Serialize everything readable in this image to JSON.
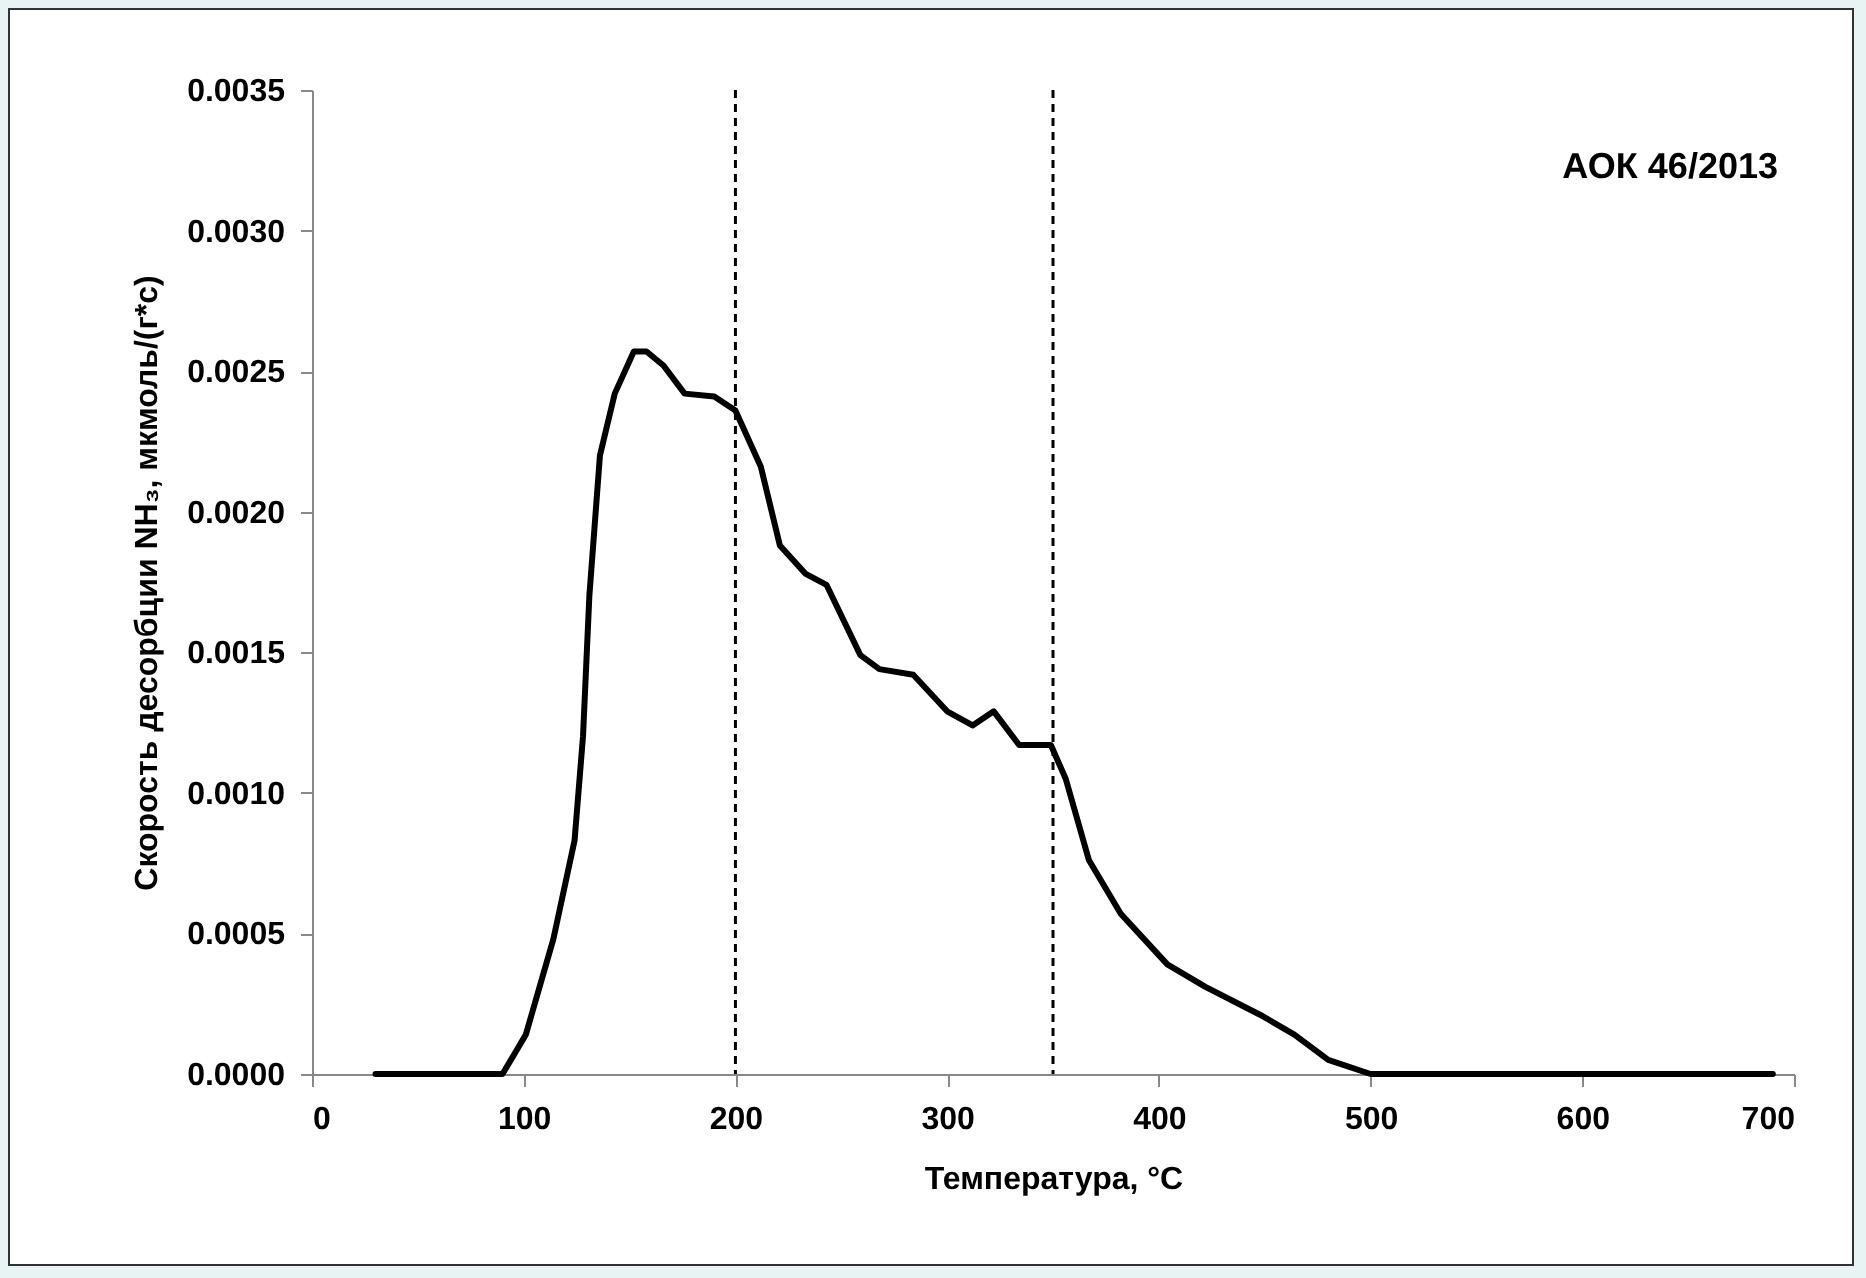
{
  "chart_data": {
    "type": "line",
    "xlabel": "Температура, °C",
    "ylabel": "Скорость десорбции NH₃, мкмоль/(г*с)",
    "annotations": [
      "АОК 46/2013"
    ],
    "x": [
      30,
      88,
      90,
      101,
      114,
      124,
      128,
      131,
      136,
      143,
      152,
      158,
      166,
      176,
      190,
      200,
      212,
      221,
      233,
      243,
      259,
      268,
      284,
      300,
      312,
      322,
      334,
      349,
      356,
      367,
      382,
      404,
      422,
      448,
      464,
      480,
      500,
      507,
      600,
      690
    ],
    "series": [
      {
        "color": "#000000",
        "values": [
          0,
          0,
          0,
          0.00014,
          0.00048,
          0.00083,
          0.0012,
          0.0017,
          0.0022,
          0.00242,
          0.00257,
          0.00257,
          0.00252,
          0.00242,
          0.00241,
          0.00236,
          0.00216,
          0.00188,
          0.00178,
          0.00174,
          0.00149,
          0.00144,
          0.00142,
          0.00129,
          0.00124,
          0.00129,
          0.00117,
          0.00117,
          0.00105,
          0.00076,
          0.00057,
          0.00039,
          0.00031,
          0.00021,
          0.00014,
          5e-05,
          0,
          0,
          0,
          0
        ]
      }
    ],
    "xlim": [
      0,
      700
    ],
    "xticks": [
      0,
      100,
      200,
      300,
      400,
      500,
      600,
      700
    ],
    "ylim": [
      0,
      0.0035
    ],
    "yticks": [
      {
        "value": 0,
        "label": "0.0000"
      },
      {
        "value": 0.0005,
        "label": "0.0005"
      },
      {
        "value": 0.001,
        "label": "0.0010"
      },
      {
        "value": 0.0015,
        "label": "0.0015"
      },
      {
        "value": 0.002,
        "label": "0.0020"
      },
      {
        "value": 0.0025,
        "label": "0.0025"
      },
      {
        "value": 0.003,
        "label": "0.0030"
      },
      {
        "value": 0.0035,
        "label": "0.0035"
      }
    ],
    "ref_lines": [
      {
        "axis": "x",
        "value": 200,
        "color": "#000000",
        "line_style": "dashed"
      },
      {
        "axis": "x",
        "value": 350,
        "color": "#000000",
        "line_style": "dashed"
      }
    ],
    "grid": false,
    "legend": false
  }
}
